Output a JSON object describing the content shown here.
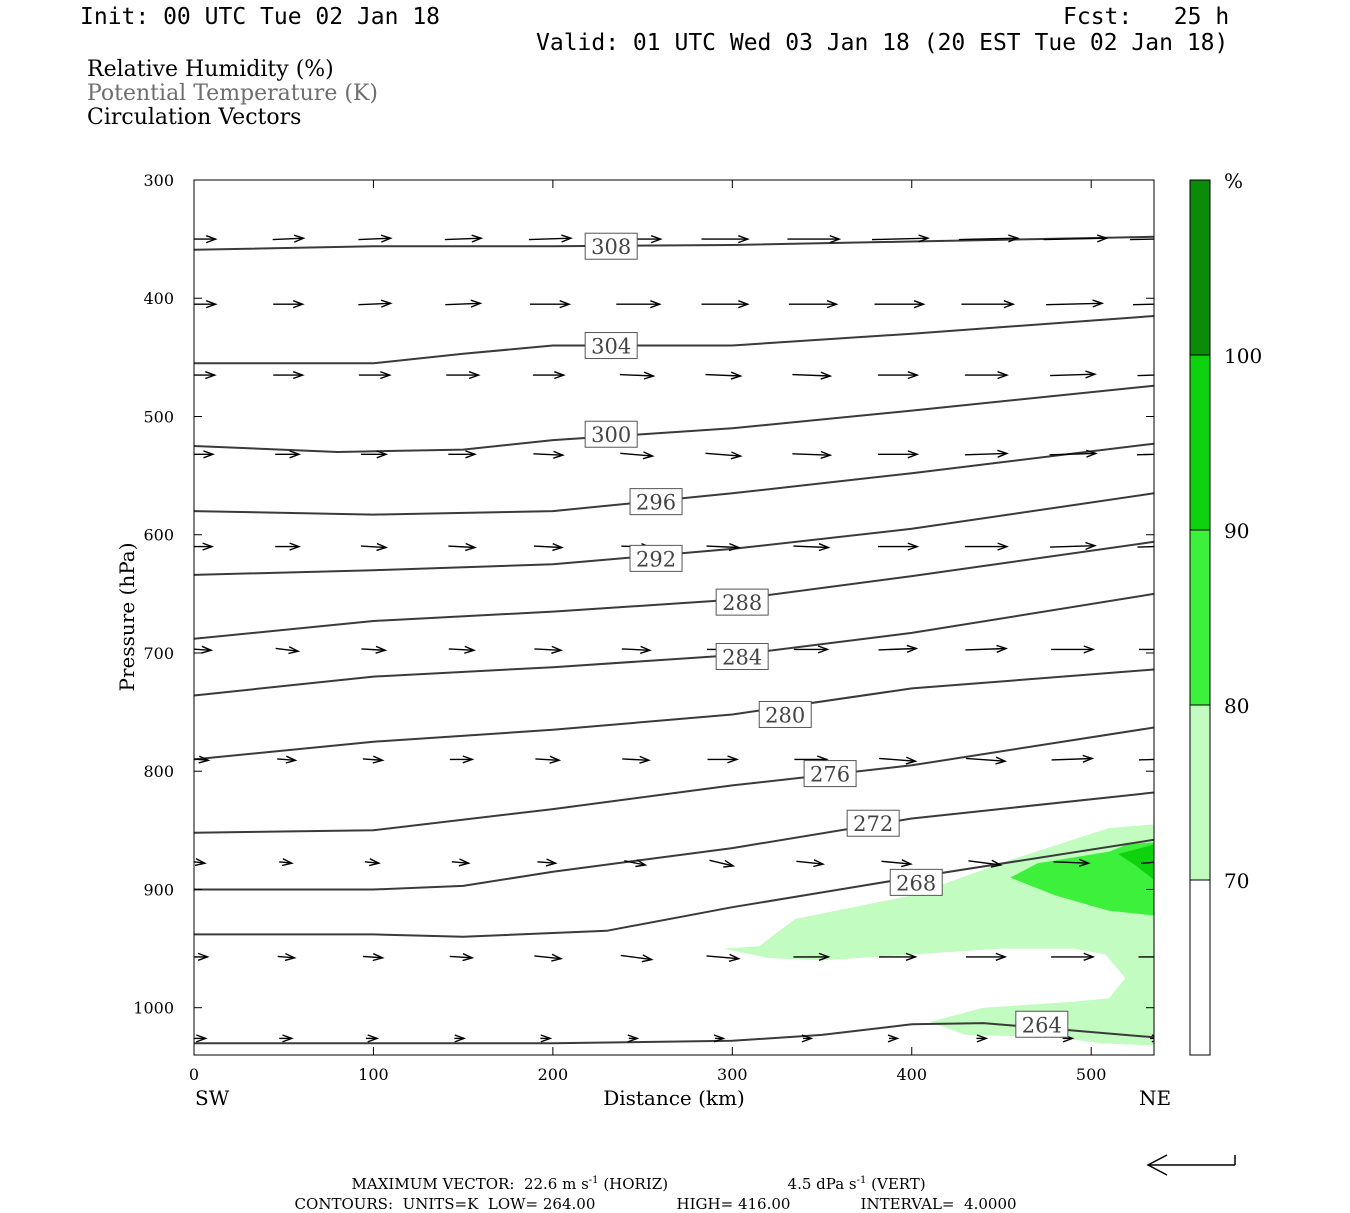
{
  "header": {
    "init": "Init: 00 UTC Tue 02 Jan 18",
    "fcst": "Fcst:   25 h",
    "valid": "Valid: 01 UTC Wed 03 Jan 18 (20 EST Tue 02 Jan 18)"
  },
  "legend": {
    "rh": "Relative Humidity (%)",
    "theta": "Potential Temperature (K)",
    "vectors": "Circulation Vectors"
  },
  "colors": {
    "frame": "#000000",
    "contour": "#3a3a3a",
    "theta_text": "#6e6e6e",
    "rh70": "#c2fcc0",
    "rh80": "#3cf03c",
    "rh90": "#0ed20e",
    "rh100": "#0a8c0a"
  },
  "chart_data": {
    "type": "contour",
    "xlabel": "Distance (km)",
    "ylabel": "Pressure (hPa)",
    "xlim": [
      0,
      535
    ],
    "ylim": [
      1040,
      300
    ],
    "x_ticks": [
      0,
      100,
      200,
      300,
      400,
      500
    ],
    "y_ticks": [
      300,
      400,
      500,
      600,
      700,
      800,
      900,
      1000
    ],
    "x_end_labels": {
      "left": "SW",
      "right": "NE"
    },
    "colorbar": {
      "unit": "%",
      "levels": [
        70,
        80,
        90,
        100
      ],
      "labels": [
        "70",
        "80",
        "90",
        "100"
      ]
    },
    "theta_contours": [
      {
        "level": "308",
        "label_x": 218,
        "label_p": 356,
        "points": [
          [
            0,
            359
          ],
          [
            100,
            356
          ],
          [
            200,
            356
          ],
          [
            300,
            355
          ],
          [
            400,
            352
          ],
          [
            535,
            348
          ]
        ]
      },
      {
        "level": "304",
        "label_x": 218,
        "label_p": 440,
        "points": [
          [
            0,
            455
          ],
          [
            100,
            455
          ],
          [
            150,
            447
          ],
          [
            200,
            440
          ],
          [
            300,
            440
          ],
          [
            400,
            430
          ],
          [
            535,
            415
          ]
        ]
      },
      {
        "level": "300",
        "label_x": 218,
        "label_p": 515,
        "points": [
          [
            0,
            525
          ],
          [
            80,
            530
          ],
          [
            150,
            528
          ],
          [
            200,
            520
          ],
          [
            300,
            510
          ],
          [
            400,
            495
          ],
          [
            535,
            474
          ]
        ]
      },
      {
        "level": "296",
        "label_x": 243,
        "label_p": 572,
        "points": [
          [
            0,
            580
          ],
          [
            100,
            583
          ],
          [
            200,
            580
          ],
          [
            300,
            565
          ],
          [
            400,
            548
          ],
          [
            535,
            523
          ]
        ]
      },
      {
        "level": "292",
        "label_x": 243,
        "label_p": 620,
        "points": [
          [
            0,
            634
          ],
          [
            100,
            630
          ],
          [
            200,
            625
          ],
          [
            300,
            612
          ],
          [
            400,
            595
          ],
          [
            535,
            565
          ]
        ]
      },
      {
        "level": "288",
        "label_x": 291,
        "label_p": 657,
        "points": [
          [
            0,
            688
          ],
          [
            100,
            673
          ],
          [
            200,
            665
          ],
          [
            300,
            655
          ],
          [
            400,
            635
          ],
          [
            535,
            606
          ]
        ]
      },
      {
        "level": "284",
        "label_x": 291,
        "label_p": 703,
        "points": [
          [
            0,
            736
          ],
          [
            100,
            720
          ],
          [
            200,
            712
          ],
          [
            300,
            702
          ],
          [
            400,
            683
          ],
          [
            535,
            650
          ]
        ]
      },
      {
        "level": "280",
        "label_x": 315,
        "label_p": 752,
        "points": [
          [
            0,
            790
          ],
          [
            100,
            775
          ],
          [
            200,
            765
          ],
          [
            300,
            752
          ],
          [
            400,
            730
          ],
          [
            535,
            714
          ]
        ]
      },
      {
        "level": "276",
        "label_x": 340,
        "label_p": 802,
        "points": [
          [
            0,
            852
          ],
          [
            100,
            850
          ],
          [
            200,
            832
          ],
          [
            300,
            812
          ],
          [
            400,
            795
          ],
          [
            535,
            763
          ]
        ]
      },
      {
        "level": "272",
        "label_x": 364,
        "label_p": 844,
        "points": [
          [
            0,
            900
          ],
          [
            100,
            900
          ],
          [
            150,
            897
          ],
          [
            200,
            885
          ],
          [
            300,
            865
          ],
          [
            400,
            840
          ],
          [
            535,
            818
          ]
        ]
      },
      {
        "level": "268",
        "label_x": 388,
        "label_p": 894,
        "points": [
          [
            0,
            938
          ],
          [
            100,
            938
          ],
          [
            150,
            940
          ],
          [
            230,
            935
          ],
          [
            300,
            915
          ],
          [
            400,
            890
          ],
          [
            535,
            858
          ]
        ]
      },
      {
        "level": "264",
        "label_x": 458,
        "label_p": 1014,
        "points": [
          [
            0,
            1030
          ],
          [
            100,
            1030
          ],
          [
            200,
            1030
          ],
          [
            300,
            1028
          ],
          [
            350,
            1023
          ],
          [
            400,
            1014
          ],
          [
            440,
            1013
          ],
          [
            480,
            1018
          ],
          [
            535,
            1025
          ]
        ]
      }
    ],
    "rh_regions": [
      {
        "level": "70-80",
        "polygon": [
          [
            295,
            950
          ],
          [
            315,
            948
          ],
          [
            335,
            925
          ],
          [
            400,
            905
          ],
          [
            455,
            875
          ],
          [
            510,
            848
          ],
          [
            535,
            845
          ],
          [
            535,
            1032
          ],
          [
            505,
            1030
          ],
          [
            480,
            1025
          ],
          [
            430,
            1023
          ],
          [
            410,
            1012
          ],
          [
            440,
            1000
          ],
          [
            490,
            995
          ],
          [
            510,
            992
          ],
          [
            519,
            975
          ],
          [
            508,
            955
          ],
          [
            490,
            950
          ],
          [
            450,
            950
          ],
          [
            400,
            955
          ],
          [
            350,
            960
          ],
          [
            320,
            958
          ]
        ]
      },
      {
        "level": "80-90",
        "polygon": [
          [
            455,
            890
          ],
          [
            470,
            878
          ],
          [
            510,
            868
          ],
          [
            520,
            862
          ],
          [
            535,
            860
          ],
          [
            535,
            922
          ],
          [
            510,
            918
          ],
          [
            480,
            905
          ]
        ]
      },
      {
        "level": "90-100",
        "polygon": [
          [
            515,
            870
          ],
          [
            525,
            866
          ],
          [
            535,
            862
          ],
          [
            535,
            892
          ],
          [
            525,
            880
          ]
        ]
      }
    ],
    "vectors": {
      "rows_p": [
        350,
        405,
        465,
        532,
        610,
        697,
        790,
        877,
        957,
        1026
      ],
      "columns_x": [
        2,
        50,
        98,
        147,
        195,
        244,
        292,
        341,
        389,
        438,
        486,
        535
      ],
      "rows": [
        [
          [
            20,
            0
          ],
          [
            22,
            -1
          ],
          [
            23,
            -1
          ],
          [
            26,
            -1
          ],
          [
            30,
            -1
          ],
          [
            32,
            0
          ],
          [
            33,
            0
          ],
          [
            37,
            0
          ],
          [
            40,
            -1
          ],
          [
            42,
            -1
          ],
          [
            45,
            -1
          ],
          [
            48,
            -1
          ]
        ],
        [
          [
            20,
            0
          ],
          [
            21,
            0
          ],
          [
            23,
            -1
          ],
          [
            25,
            -1
          ],
          [
            28,
            0
          ],
          [
            31,
            0
          ],
          [
            33,
            0
          ],
          [
            34,
            0
          ],
          [
            35,
            0
          ],
          [
            37,
            0
          ],
          [
            40,
            -1
          ],
          [
            42,
            -1
          ]
        ],
        [
          [
            19,
            0
          ],
          [
            21,
            0
          ],
          [
            22,
            0
          ],
          [
            23,
            0
          ],
          [
            22,
            0
          ],
          [
            24,
            1
          ],
          [
            25,
            1
          ],
          [
            27,
            1
          ],
          [
            28,
            0
          ],
          [
            30,
            0
          ],
          [
            32,
            -1
          ],
          [
            33,
            -1
          ]
        ],
        [
          [
            17,
            0
          ],
          [
            17,
            0
          ],
          [
            18,
            0
          ],
          [
            19,
            0
          ],
          [
            21,
            1
          ],
          [
            23,
            2
          ],
          [
            25,
            2
          ],
          [
            27,
            1
          ],
          [
            28,
            0
          ],
          [
            30,
            -1
          ],
          [
            33,
            -1
          ],
          [
            34,
            -1
          ]
        ],
        [
          [
            16,
            0
          ],
          [
            17,
            0
          ],
          [
            18,
            1
          ],
          [
            19,
            1
          ],
          [
            20,
            1
          ],
          [
            21,
            1
          ],
          [
            23,
            1
          ],
          [
            25,
            1
          ],
          [
            28,
            0
          ],
          [
            30,
            0
          ],
          [
            32,
            -1
          ],
          [
            33,
            -1
          ]
        ],
        [
          [
            15,
            1
          ],
          [
            16,
            2
          ],
          [
            17,
            1
          ],
          [
            18,
            1
          ],
          [
            19,
            1
          ],
          [
            20,
            1
          ],
          [
            22,
            0
          ],
          [
            24,
            0
          ],
          [
            27,
            -1
          ],
          [
            29,
            -1
          ],
          [
            30,
            0
          ],
          [
            30,
            0
          ]
        ],
        [
          [
            12,
            1
          ],
          [
            13,
            1
          ],
          [
            14,
            1
          ],
          [
            16,
            0
          ],
          [
            17,
            1
          ],
          [
            19,
            1
          ],
          [
            21,
            0
          ],
          [
            23,
            0
          ],
          [
            26,
            2
          ],
          [
            28,
            2
          ],
          [
            29,
            -1
          ],
          [
            30,
            -1
          ]
        ],
        [
          [
            8,
            1
          ],
          [
            9,
            1
          ],
          [
            10,
            1
          ],
          [
            12,
            1
          ],
          [
            13,
            1
          ],
          [
            15,
            3
          ],
          [
            17,
            4
          ],
          [
            19,
            2
          ],
          [
            21,
            2
          ],
          [
            23,
            3
          ],
          [
            25,
            1
          ],
          [
            26,
            -2
          ]
        ],
        [
          [
            11,
            0
          ],
          [
            12,
            1
          ],
          [
            14,
            1
          ],
          [
            16,
            1
          ],
          [
            19,
            2
          ],
          [
            22,
            3
          ],
          [
            23,
            2
          ],
          [
            25,
            0
          ],
          [
            26,
            0
          ],
          [
            28,
            0
          ],
          [
            30,
            0
          ],
          [
            31,
            0
          ]
        ],
        [
          [
            9,
            0
          ],
          [
            9,
            0
          ],
          [
            8,
            0
          ],
          [
            7,
            0
          ],
          [
            7,
            0
          ],
          [
            6,
            0
          ],
          [
            6,
            0
          ],
          [
            6,
            0
          ],
          [
            6,
            0
          ],
          [
            7,
            0
          ],
          [
            7,
            0
          ],
          [
            8,
            0
          ]
        ]
      ]
    }
  },
  "footer": {
    "max_vector_label": "MAXIMUM VECTOR:",
    "max_horiz": "22.6 m s",
    "max_horiz_unit": "(HORIZ)",
    "max_vert": "4.5 dPa s",
    "max_vert_unit": "(VERT)",
    "sup": "-1",
    "contours_label": "CONTOURS:",
    "units": "UNITS=K",
    "low_label": "LOW=",
    "low": "264.00",
    "high_label": "HIGH=",
    "high": "416.00",
    "interval_label": "INTERVAL=",
    "interval": "4.0000"
  }
}
